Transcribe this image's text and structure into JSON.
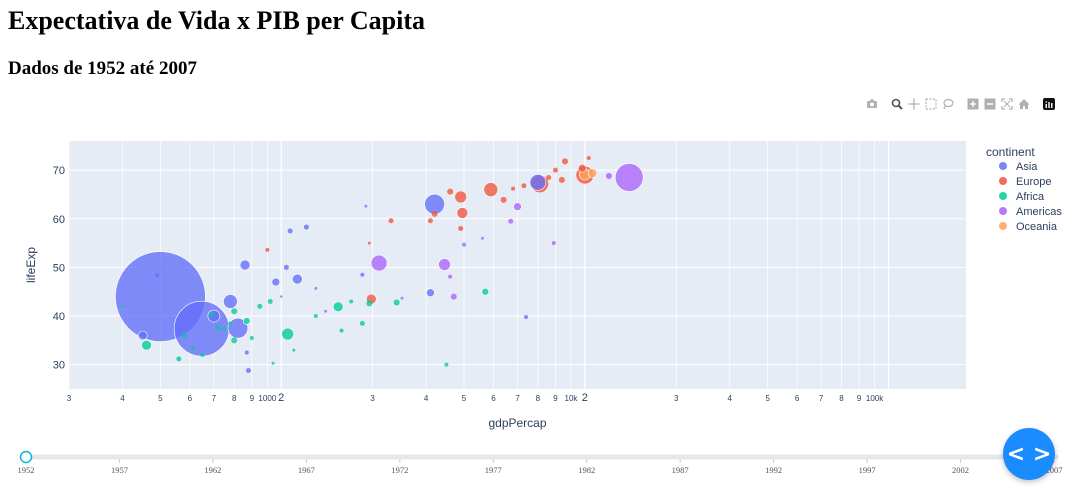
{
  "page": {
    "title": "Expectativa de Vida x PIB per Capita",
    "subtitle": "Dados de 1952 até 2007"
  },
  "modebar": {
    "icons": [
      "camera-icon",
      "zoom-icon",
      "pan-icon",
      "box-select-icon",
      "lasso-icon",
      "zoom-in-icon",
      "zoom-out-icon",
      "autoscale-icon",
      "home-icon",
      "plotly-logo-icon"
    ]
  },
  "colors": {
    "Asia": "#636efa",
    "Europe": "#EF553B",
    "Africa": "#00cc96",
    "Americas": "#ab63fa",
    "Oceania": "#FFA15A",
    "plot_bg": "#e5ecf6",
    "slider_active": "#00bcd4",
    "fab": "#1a8cff"
  },
  "chart_data": {
    "type": "scatter",
    "xlabel": "gdpPercap",
    "ylabel": "lifeExp",
    "x_scale": "log",
    "xlim": [
      200,
      180000
    ],
    "ylim": [
      25,
      76
    ],
    "grid": true,
    "x_tick_labels": [
      "3",
      "4",
      "5",
      "6",
      "7",
      "8",
      "9",
      "1000",
      "2",
      "3",
      "4",
      "5",
      "6",
      "7",
      "8",
      "9",
      "10k",
      "2",
      "3",
      "4",
      "5",
      "6",
      "7",
      "8",
      "9",
      "100k"
    ],
    "y_tick_labels": [
      "30",
      "40",
      "50",
      "60",
      "70"
    ],
    "legend": {
      "title": "continent",
      "placement": "right",
      "entries": [
        "Asia",
        "Europe",
        "Africa",
        "Americas",
        "Oceania"
      ]
    },
    "series": [
      {
        "name": "Asia",
        "values": [
          {
            "x": 400,
            "y": 44,
            "size": 90
          },
          {
            "x": 547,
            "y": 37.4,
            "size": 55
          },
          {
            "x": 1000,
            "y": 44,
            "size": 0
          },
          {
            "x": 3200,
            "y": 63,
            "size": 20
          },
          {
            "x": 680,
            "y": 43,
            "size": 14
          },
          {
            "x": 720,
            "y": 37.5,
            "size": 20
          },
          {
            "x": 600,
            "y": 40,
            "size": 12
          },
          {
            "x": 350,
            "y": 36,
            "size": 9
          },
          {
            "x": 760,
            "y": 50.5,
            "size": 10
          },
          {
            "x": 1130,
            "y": 47.6,
            "size": 10
          },
          {
            "x": 1070,
            "y": 57.5,
            "size": 5
          },
          {
            "x": 1210,
            "y": 58.3,
            "size": 5
          },
          {
            "x": 960,
            "y": 47,
            "size": 8
          },
          {
            "x": 1040,
            "y": 50,
            "size": 5
          },
          {
            "x": 780,
            "y": 28.8,
            "size": 5
          },
          {
            "x": 770,
            "y": 32.5,
            "size": 4
          },
          {
            "x": 3100,
            "y": 44.8,
            "size": 8
          },
          {
            "x": 1850,
            "y": 48.5,
            "size": 4
          },
          {
            "x": 6400,
            "y": 39.8,
            "size": 4
          },
          {
            "x": 7000,
            "y": 67.5,
            "size": 16
          },
          {
            "x": 390,
            "y": 48.4,
            "size": 4
          }
        ]
      },
      {
        "name": "Europe",
        "values": [
          {
            "x": 4900,
            "y": 66,
            "size": 14
          },
          {
            "x": 3900,
            "y": 64.5,
            "size": 12
          },
          {
            "x": 3950,
            "y": 61.2,
            "size": 11
          },
          {
            "x": 7100,
            "y": 67.2,
            "size": 18
          },
          {
            "x": 10000,
            "y": 69,
            "size": 18
          },
          {
            "x": 7600,
            "y": 68.5,
            "size": 5
          },
          {
            "x": 8000,
            "y": 70,
            "size": 5
          },
          {
            "x": 8600,
            "y": 71.8,
            "size": 7
          },
          {
            "x": 10300,
            "y": 72.5,
            "size": 4
          },
          {
            "x": 9800,
            "y": 70.4,
            "size": 8
          },
          {
            "x": 5400,
            "y": 63.9,
            "size": 6
          },
          {
            "x": 5800,
            "y": 66.2,
            "size": 4
          },
          {
            "x": 6300,
            "y": 66.8,
            "size": 5
          },
          {
            "x": 3600,
            "y": 65.6,
            "size": 6
          },
          {
            "x": 3900,
            "y": 58,
            "size": 5
          },
          {
            "x": 3200,
            "y": 61,
            "size": 6
          },
          {
            "x": 3100,
            "y": 59.6,
            "size": 5
          },
          {
            "x": 1980,
            "y": 43.5,
            "size": 10
          },
          {
            "x": 2300,
            "y": 59.6,
            "size": 5
          },
          {
            "x": 1950,
            "y": 55,
            "size": 3
          },
          {
            "x": 900,
            "y": 53.6,
            "size": 4
          },
          {
            "x": 8400,
            "y": 68,
            "size": 6
          }
        ]
      },
      {
        "name": "Africa",
        "values": [
          {
            "x": 1050,
            "y": 36.3,
            "size": 12
          },
          {
            "x": 1540,
            "y": 41.9,
            "size": 10
          },
          {
            "x": 360,
            "y": 34,
            "size": 10
          },
          {
            "x": 770,
            "y": 39,
            "size": 7
          },
          {
            "x": 4700,
            "y": 45,
            "size": 7
          },
          {
            "x": 700,
            "y": 35,
            "size": 6
          },
          {
            "x": 850,
            "y": 42,
            "size": 5
          },
          {
            "x": 480,
            "y": 36,
            "size": 5
          },
          {
            "x": 620,
            "y": 37.6,
            "size": 5
          },
          {
            "x": 1850,
            "y": 38.5,
            "size": 5
          },
          {
            "x": 1950,
            "y": 42.6,
            "size": 6
          },
          {
            "x": 2400,
            "y": 42.8,
            "size": 6
          },
          {
            "x": 3500,
            "y": 30,
            "size": 4
          },
          {
            "x": 460,
            "y": 31.2,
            "size": 5
          },
          {
            "x": 510,
            "y": 33.5,
            "size": 4
          },
          {
            "x": 550,
            "y": 32,
            "size": 4
          },
          {
            "x": 940,
            "y": 30.3,
            "size": 3
          },
          {
            "x": 1100,
            "y": 33,
            "size": 3
          },
          {
            "x": 800,
            "y": 35.5,
            "size": 4
          },
          {
            "x": 1300,
            "y": 40,
            "size": 4
          },
          {
            "x": 1700,
            "y": 43,
            "size": 4
          },
          {
            "x": 920,
            "y": 43,
            "size": 5
          },
          {
            "x": 300,
            "y": 42,
            "size": 3
          },
          {
            "x": 700,
            "y": 41,
            "size": 6
          },
          {
            "x": 1580,
            "y": 37,
            "size": 4
          },
          {
            "x": 680,
            "y": 38.5,
            "size": 4
          },
          {
            "x": 590,
            "y": 40.3,
            "size": 5
          },
          {
            "x": 650,
            "y": 37.3,
            "size": 4
          }
        ]
      },
      {
        "name": "Americas",
        "values": [
          {
            "x": 2100,
            "y": 50.9,
            "size": 16
          },
          {
            "x": 3450,
            "y": 50.6,
            "size": 12
          },
          {
            "x": 14000,
            "y": 68.5,
            "size": 28
          },
          {
            "x": 6000,
            "y": 62.5,
            "size": 8
          },
          {
            "x": 12000,
            "y": 68.8,
            "size": 7
          },
          {
            "x": 5700,
            "y": 59.5,
            "size": 5
          },
          {
            "x": 7900,
            "y": 55,
            "size": 4
          },
          {
            "x": 3700,
            "y": 44,
            "size": 6
          },
          {
            "x": 4000,
            "y": 54.7,
            "size": 4
          },
          {
            "x": 4600,
            "y": 56,
            "size": 3
          },
          {
            "x": 3600,
            "y": 48.1,
            "size": 4
          },
          {
            "x": 2500,
            "y": 43.7,
            "size": 3
          },
          {
            "x": 1300,
            "y": 45.7,
            "size": 3
          },
          {
            "x": 1900,
            "y": 62.6,
            "size": 3
          },
          {
            "x": 1400,
            "y": 41,
            "size": 3
          }
        ]
      },
      {
        "name": "Oceania",
        "values": [
          {
            "x": 10000,
            "y": 69.1,
            "size": 11
          },
          {
            "x": 10600,
            "y": 69.4,
            "size": 9
          }
        ]
      }
    ]
  },
  "slider": {
    "current": "1952",
    "steps": [
      "1952",
      "1957",
      "1962",
      "1967",
      "1972",
      "1977",
      "1982",
      "1987",
      "1992",
      "1997",
      "2002",
      "2007"
    ]
  },
  "fab": {
    "icon": "code-icon",
    "symbol": "< >"
  }
}
